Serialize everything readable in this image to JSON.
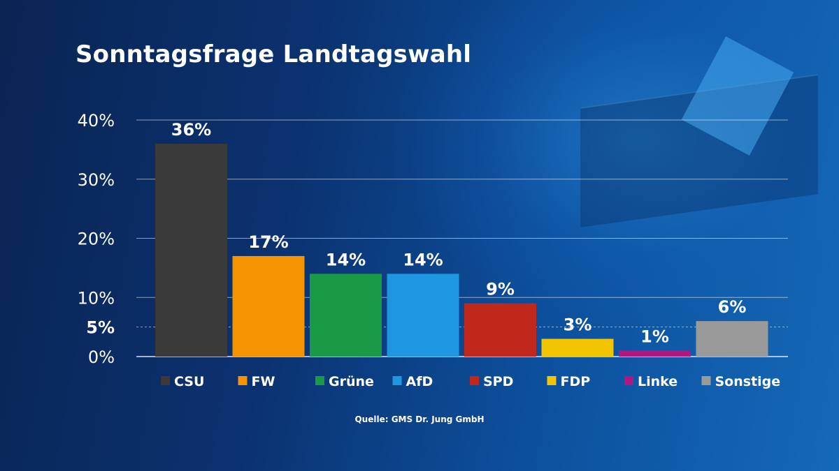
{
  "title": "Sonntagsfrage Landtagswahl",
  "source": "Quelle: GMS Dr. Jung GmbH",
  "chart_data": {
    "type": "bar",
    "title": "Sonntagsfrage Landtagswahl",
    "xlabel": "",
    "ylabel": "",
    "ylim": [
      0,
      40
    ],
    "grid": true,
    "yticks": [
      {
        "value": 0,
        "label": "0%",
        "bold": false
      },
      {
        "value": 5,
        "label": "5%",
        "bold": true
      },
      {
        "value": 10,
        "label": "10%",
        "bold": false
      },
      {
        "value": 20,
        "label": "20%",
        "bold": false
      },
      {
        "value": 30,
        "label": "30%",
        "bold": false
      },
      {
        "value": 40,
        "label": "40%",
        "bold": false
      }
    ],
    "categories": [
      "CSU",
      "FW",
      "Grüne",
      "AfD",
      "SPD",
      "FDP",
      "Linke",
      "Sonstige"
    ],
    "values": [
      36,
      17,
      14,
      14,
      9,
      3,
      1,
      6
    ],
    "value_labels": [
      "36%",
      "17%",
      "14%",
      "14%",
      "9%",
      "3%",
      "1%",
      "6%"
    ],
    "colors": [
      "#3a3a3a",
      "#f39400",
      "#1a9a46",
      "#1e96e0",
      "#c0281c",
      "#f2c500",
      "#b0177f",
      "#9a9a9a"
    ],
    "legend_position": "bottom"
  }
}
